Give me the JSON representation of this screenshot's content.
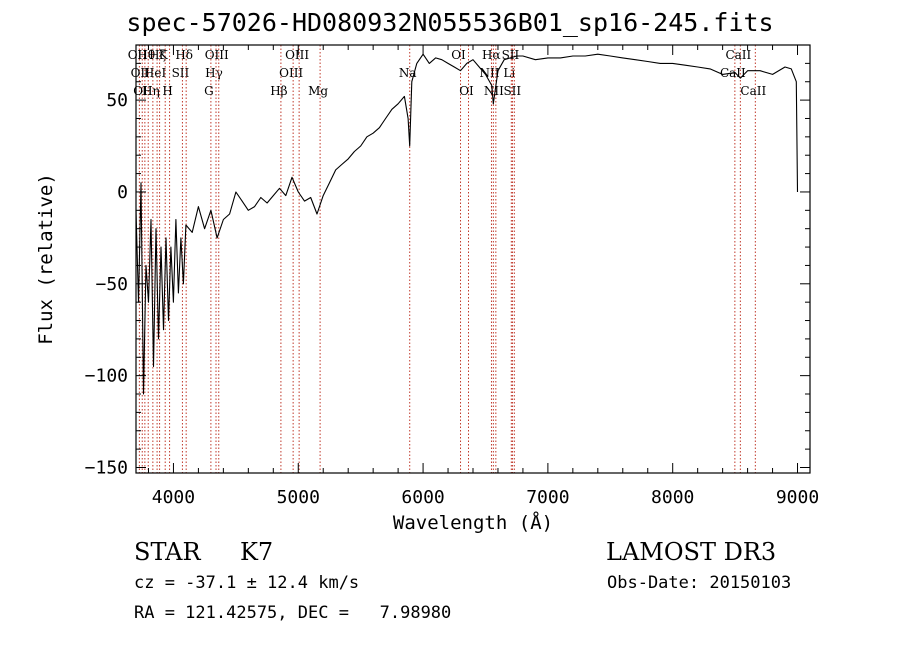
{
  "title": "spec-57026-HD080932N055536B01_sp16-245.fits",
  "info": {
    "class_label": "STAR",
    "subclass": "K7",
    "survey": "LAMOST DR3",
    "cz": "cz = -37.1 ± 12.4 km/s",
    "obs_date": "Obs-Date: 20150103",
    "coords": "RA = 121.42575, DEC =   7.98980"
  },
  "chart_data": {
    "type": "line",
    "title": "spec-57026-HD080932N055536B01_sp16-245.fits",
    "xlabel": "Wavelength (Å)",
    "ylabel": "Flux (relative)",
    "xlim": [
      3700,
      9100
    ],
    "ylim": [
      -153,
      80
    ],
    "xticks": [
      4000,
      5000,
      6000,
      7000,
      8000,
      9000
    ],
    "yticks": [
      -150,
      -100,
      -50,
      0,
      50
    ],
    "series": [
      {
        "name": "flux",
        "x": [
          3700,
          3720,
          3740,
          3760,
          3780,
          3800,
          3820,
          3840,
          3860,
          3880,
          3900,
          3920,
          3940,
          3960,
          3980,
          4000,
          4020,
          4040,
          4060,
          4080,
          4100,
          4150,
          4200,
          4250,
          4300,
          4350,
          4400,
          4450,
          4500,
          4550,
          4600,
          4650,
          4700,
          4750,
          4800,
          4850,
          4900,
          4950,
          5000,
          5050,
          5100,
          5150,
          5200,
          5250,
          5300,
          5350,
          5400,
          5450,
          5500,
          5550,
          5600,
          5650,
          5700,
          5750,
          5800,
          5850,
          5880,
          5893,
          5910,
          5950,
          6000,
          6050,
          6100,
          6150,
          6200,
          6250,
          6300,
          6350,
          6400,
          6450,
          6500,
          6550,
          6563,
          6600,
          6650,
          6700,
          6750,
          6800,
          6900,
          7000,
          7100,
          7200,
          7300,
          7400,
          7500,
          7600,
          7700,
          7800,
          7900,
          8000,
          8100,
          8200,
          8300,
          8400,
          8500,
          8542,
          8600,
          8700,
          8800,
          8900,
          8950,
          8990,
          9000
        ],
        "y": [
          -10,
          -60,
          5,
          -110,
          -40,
          -60,
          -15,
          -95,
          -20,
          -80,
          -30,
          -75,
          -25,
          -70,
          -30,
          -60,
          -15,
          -55,
          -25,
          -50,
          -18,
          -22,
          -8,
          -20,
          -10,
          -25,
          -15,
          -12,
          0,
          -5,
          -10,
          -8,
          -3,
          -6,
          -2,
          2,
          -2,
          8,
          0,
          -5,
          -3,
          -12,
          -2,
          5,
          12,
          15,
          18,
          22,
          25,
          30,
          32,
          35,
          40,
          45,
          48,
          52,
          40,
          25,
          60,
          70,
          75,
          70,
          73,
          72,
          70,
          68,
          66,
          70,
          72,
          68,
          64,
          58,
          48,
          66,
          72,
          73,
          74,
          74,
          72,
          73,
          73,
          74,
          74,
          75,
          74,
          73,
          72,
          71,
          70,
          70,
          69,
          68,
          67,
          64,
          65,
          62,
          66,
          66,
          64,
          68,
          67,
          60,
          0
        ]
      }
    ],
    "lines": [
      {
        "wavelength": 3727,
        "label": "OII",
        "row": 2
      },
      {
        "wavelength": 3750,
        "label": "OII",
        "row": 3
      },
      {
        "wavelength": 3771,
        "label": "OII",
        "row": 4
      },
      {
        "wavelength": 3798,
        "label": "Hθ",
        "row": 2
      },
      {
        "wavelength": 3835,
        "label": "Hη",
        "row": 4
      },
      {
        "wavelength": 3869,
        "label": "HeI",
        "row": 3
      },
      {
        "wavelength": 3889,
        "label": "Hζ",
        "row": 2
      },
      {
        "wavelength": 3934,
        "label": "K",
        "row": 2
      },
      {
        "wavelength": 3969,
        "label": "H",
        "row": 4
      },
      {
        "wavelength": 4072,
        "label": "SII",
        "row": 3
      },
      {
        "wavelength": 4102,
        "label": "Hδ",
        "row": 2
      },
      {
        "wavelength": 4300,
        "label": "G",
        "row": 4
      },
      {
        "wavelength": 4341,
        "label": "Hγ",
        "row": 3
      },
      {
        "wavelength": 4363,
        "label": "OIII",
        "row": 2
      },
      {
        "wavelength": 4861,
        "label": "Hβ",
        "row": 4
      },
      {
        "wavelength": 4959,
        "label": "OIII",
        "row": 3
      },
      {
        "wavelength": 5007,
        "label": "OIII",
        "row": 2
      },
      {
        "wavelength": 5175,
        "label": "Mg",
        "row": 4
      },
      {
        "wavelength": 5893,
        "label": "Na",
        "row": 3
      },
      {
        "wavelength": 6300,
        "label": "OI",
        "row": 2
      },
      {
        "wavelength": 6364,
        "label": "OI",
        "row": 4
      },
      {
        "wavelength": 6548,
        "label": "NII",
        "row": 3
      },
      {
        "wavelength": 6563,
        "label": "Hα",
        "row": 2
      },
      {
        "wavelength": 6583,
        "label": "NII",
        "row": 4
      },
      {
        "wavelength": 6707,
        "label": "Li",
        "row": 3
      },
      {
        "wavelength": 6716,
        "label": "SII",
        "row": 2
      },
      {
        "wavelength": 6731,
        "label": "SII",
        "row": 4
      },
      {
        "wavelength": 8498,
        "label": "CaII",
        "row": 3
      },
      {
        "wavelength": 8542,
        "label": "CaII",
        "row": 2
      },
      {
        "wavelength": 8662,
        "label": "CaII",
        "row": 4
      }
    ]
  }
}
